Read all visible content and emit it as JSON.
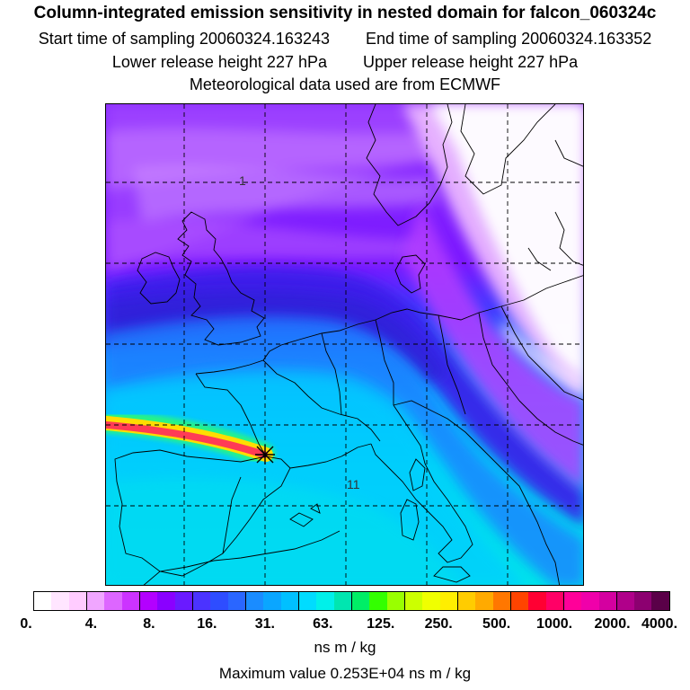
{
  "header": {
    "title": "Column-integrated emission sensitivity in nested domain for falcon_060324c",
    "start_label": "Start time of sampling 20060324.163243",
    "end_label": "End time of sampling 20060324.163352",
    "lower_label": "Lower release height  227 hPa",
    "upper_label": "Upper release height  227 hPa",
    "met_label": "Meteorological data used are from ECMWF"
  },
  "map": {
    "contour_labels": [
      "1",
      "11"
    ],
    "release_marker": "x-star-marker"
  },
  "legend": {
    "colors": [
      "#ffffff",
      "#ffe6ff",
      "#ffccff",
      "#f0a6ff",
      "#dd66ff",
      "#cc33ff",
      "#b300ff",
      "#8a00ff",
      "#6a1aff",
      "#4b33ff",
      "#2e4dff",
      "#2a66ff",
      "#1a8cff",
      "#0aa6ff",
      "#00c0ff",
      "#00dcff",
      "#00f0ea",
      "#00e6b0",
      "#00ee66",
      "#33ff00",
      "#99ff00",
      "#ccff00",
      "#f0ff00",
      "#ffee00",
      "#ffcc00",
      "#ffaa00",
      "#ff7700",
      "#ff4400",
      "#ff0033",
      "#ff0066",
      "#ff0099",
      "#f000aa",
      "#d400a0",
      "#b0008a",
      "#8c0070",
      "#5a0048"
    ],
    "ticks": [
      "0.",
      "4.",
      "8.",
      "16.",
      "31.",
      "63.",
      "125.",
      "250.",
      "500.",
      "1000.",
      "2000.",
      "4000."
    ],
    "unit": "ns m / kg",
    "max_value_label": "Maximum value  0.253E+04 ns m / kg"
  }
}
